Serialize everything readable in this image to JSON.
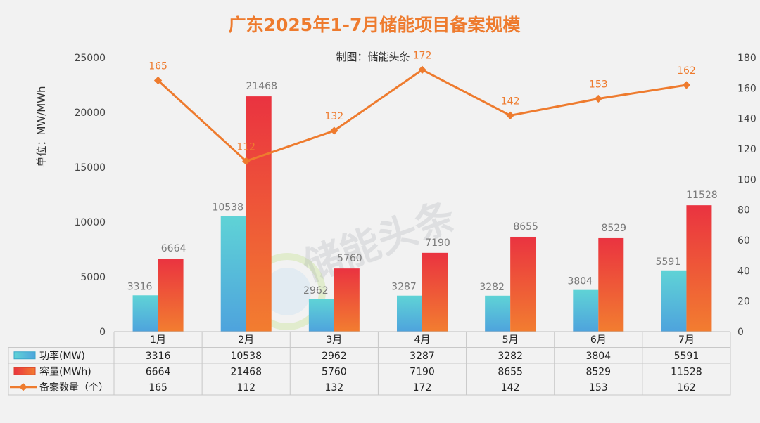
{
  "colors": {
    "background": "#f2f2f2",
    "power_top": "#5fd3d6",
    "power_bottom": "#4ea3dd",
    "capacity_top": "#ea3340",
    "capacity_bottom": "#f27d30",
    "line": "#ee7b2e",
    "title": "#ee7b2e"
  },
  "chart_data": {
    "type": "bar",
    "title": "广东2025年1-7月储能项目备案规模",
    "subtitle": "制图：储能头条",
    "ylabel_left": "单位：MW/MWh",
    "categories": [
      "1月",
      "2月",
      "3月",
      "4月",
      "5月",
      "6月",
      "7月"
    ],
    "series": [
      {
        "name": "功率(MW)",
        "type": "bar",
        "axis": "left",
        "icon": "bar-swatch-icon",
        "values": [
          3316,
          10538,
          2962,
          3287,
          3282,
          3804,
          5591
        ]
      },
      {
        "name": "容量(MWh)",
        "type": "bar",
        "axis": "left",
        "icon": "bar-swatch-icon",
        "values": [
          6664,
          21468,
          5760,
          7190,
          8655,
          8529,
          11528
        ]
      },
      {
        "name": "备案数量（个）",
        "type": "line",
        "axis": "right",
        "icon": "line-marker-icon",
        "values": [
          165,
          112,
          132,
          172,
          142,
          153,
          162
        ]
      }
    ],
    "ylim_left": [
      0,
      25000
    ],
    "yticks_left": [
      0,
      5000,
      10000,
      15000,
      20000,
      25000
    ],
    "ylim_right": [
      0,
      180
    ],
    "yticks_right": [
      0,
      20,
      40,
      60,
      80,
      100,
      120,
      140,
      160,
      180
    ],
    "grid": false,
    "legend": "data-table"
  },
  "watermark": {
    "text": "储能头条"
  }
}
